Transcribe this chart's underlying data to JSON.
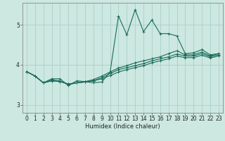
{
  "xlabel": "Humidex (Indice chaleur)",
  "xlim": [
    -0.5,
    23.5
  ],
  "ylim": [
    2.8,
    5.55
  ],
  "yticks": [
    3,
    4,
    5
  ],
  "xticks": [
    0,
    1,
    2,
    3,
    4,
    5,
    6,
    7,
    8,
    9,
    10,
    11,
    12,
    13,
    14,
    15,
    16,
    17,
    18,
    19,
    20,
    21,
    22,
    23
  ],
  "background_color": "#cce8e0",
  "grid_color": "#aacfc8",
  "line_color": "#1a6b5a",
  "series": [
    [
      3.83,
      3.72,
      3.55,
      3.65,
      3.65,
      3.48,
      3.6,
      3.58,
      3.55,
      3.57,
      3.82,
      5.22,
      4.75,
      5.38,
      4.83,
      5.12,
      4.78,
      4.78,
      4.72,
      4.28,
      4.3,
      4.38,
      4.25,
      4.28
    ],
    [
      3.83,
      3.72,
      3.55,
      3.62,
      3.6,
      3.5,
      3.55,
      3.58,
      3.63,
      3.72,
      3.82,
      3.92,
      3.98,
      4.05,
      4.1,
      4.15,
      4.2,
      4.28,
      4.35,
      4.25,
      4.25,
      4.32,
      4.22,
      4.28
    ],
    [
      3.83,
      3.72,
      3.55,
      3.6,
      3.58,
      3.52,
      3.55,
      3.57,
      3.6,
      3.68,
      3.78,
      3.88,
      3.93,
      3.98,
      4.03,
      4.1,
      4.15,
      4.2,
      4.27,
      4.22,
      4.22,
      4.28,
      4.2,
      4.25
    ],
    [
      3.83,
      3.72,
      3.55,
      3.6,
      3.58,
      3.52,
      3.55,
      3.57,
      3.6,
      3.65,
      3.73,
      3.82,
      3.88,
      3.93,
      3.98,
      4.05,
      4.1,
      4.15,
      4.22,
      4.18,
      4.18,
      4.24,
      4.17,
      4.22
    ]
  ]
}
